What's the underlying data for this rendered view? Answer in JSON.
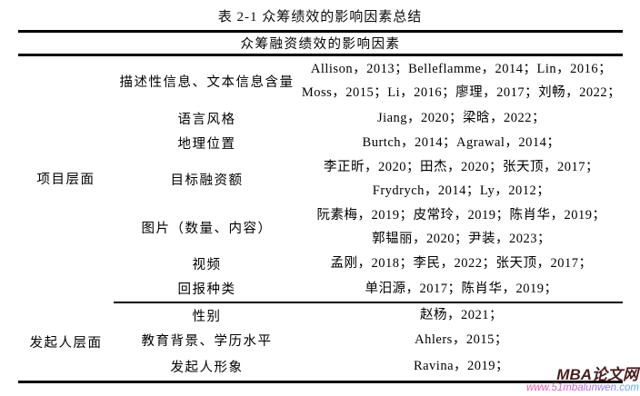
{
  "page": {
    "title": "表 2-1 众筹绩效的影响因素总结",
    "table_header": "众筹融资绩效的影响因素"
  },
  "table": {
    "groups": [
      {
        "category": "项目层面",
        "rows": [
          {
            "factor": "描述性信息、文本信息含量",
            "refs": [
              "Allison，2013；Belleflamme，2014；Lin，2016；",
              "Moss，2015；Li，2016；廖理，2017；刘畅，2022；"
            ]
          },
          {
            "factor": "语言风格",
            "refs": [
              "Jiang，2020；梁晗，2022；"
            ]
          },
          {
            "factor": "地理位置",
            "refs": [
              "Burtch，2014；Agrawal，2014；"
            ]
          },
          {
            "factor": "目标融资额",
            "refs": [
              "李正昕，2020；田杰，2020；张天顶，2017；",
              "Frydrych，2014；Ly，2012；"
            ]
          },
          {
            "factor": "图片（数量、内容）",
            "refs": [
              "阮素梅，2019；皮常玲，2019；陈肖华，2019；",
              "郭韫丽，2020；尹装，2023；"
            ]
          },
          {
            "factor": "视频",
            "refs": [
              "孟刚，2018；李民，2022；张天顶，2017；"
            ]
          },
          {
            "factor": "回报种类",
            "refs": [
              "单汨源，2017；陈肖华，2019；"
            ]
          }
        ]
      },
      {
        "category": "发起人层面",
        "rows": [
          {
            "factor": "性别",
            "refs": [
              "赵杨，2021；"
            ]
          },
          {
            "factor": "教育背景、学历水平",
            "refs": [
              "Ahlers，2015；"
            ]
          },
          {
            "factor": "发起人形象",
            "refs": [
              "Ravina，2019；"
            ]
          }
        ]
      }
    ]
  },
  "watermark": {
    "site_name": "MBA论文网",
    "site_url": "www.51mbalunwen.com",
    "name_color": "#4a1e1e",
    "url_gradient_start": "#f0569f",
    "url_gradient_end": "#56b8f0"
  }
}
